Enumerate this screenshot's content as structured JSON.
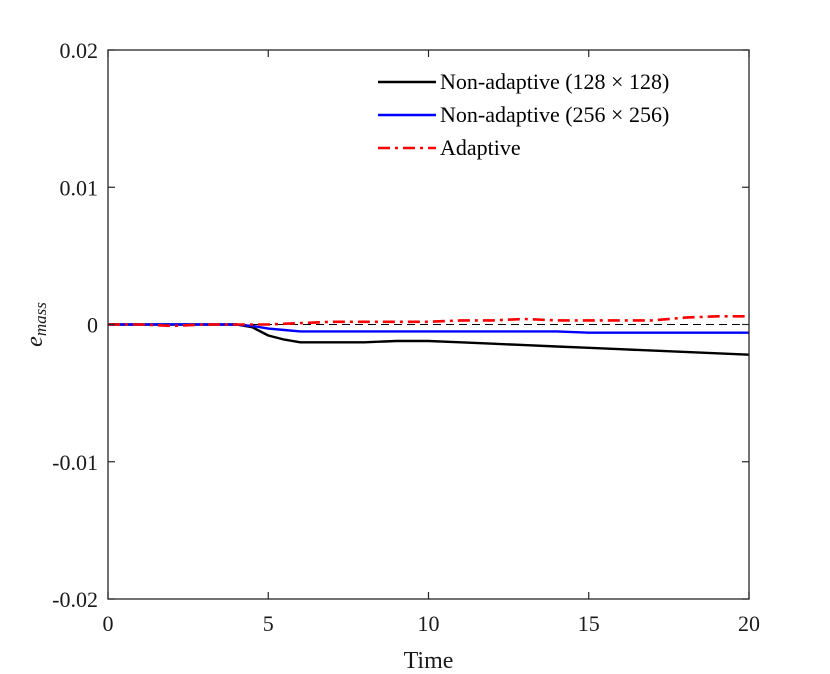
{
  "chart_data": {
    "type": "line",
    "title": "",
    "xlabel": "Time",
    "ylabel": "e",
    "ylabel_subscript": "mass",
    "xlim": [
      0,
      20
    ],
    "ylim": [
      -0.02,
      0.02
    ],
    "xticks": [
      0,
      5,
      10,
      15,
      20
    ],
    "xtick_labels": [
      "0",
      "5",
      "10",
      "15",
      "20"
    ],
    "yticks": [
      -0.02,
      -0.01,
      0,
      0.01,
      0.02
    ],
    "ytick_labels": [
      "-0.02",
      "-0.01",
      "0",
      "0.01",
      "0.02"
    ],
    "grid": false,
    "legend_position": "top-right",
    "reference_line": {
      "y": 0,
      "color": "#000000",
      "style": "dashed"
    },
    "series": [
      {
        "name": "Non-adaptive (128 × 128)",
        "color": "#000000",
        "style": "solid",
        "x": [
          0,
          1,
          2,
          3,
          4,
          4.5,
          5,
          5.5,
          6,
          6.5,
          7,
          8,
          9,
          10,
          11,
          12,
          13,
          14,
          15,
          16,
          17,
          18,
          19,
          20
        ],
        "y": [
          0,
          0,
          0,
          0,
          0,
          -0.0002,
          -0.0008,
          -0.0011,
          -0.0013,
          -0.0013,
          -0.0013,
          -0.0013,
          -0.0012,
          -0.0012,
          -0.0013,
          -0.0014,
          -0.0015,
          -0.0016,
          -0.0017,
          -0.0018,
          -0.0019,
          -0.002,
          -0.0021,
          -0.0022
        ]
      },
      {
        "name": "Non-adaptive (256 × 256)",
        "color": "#0000ff",
        "style": "solid",
        "x": [
          0,
          1,
          2,
          3,
          4,
          4.5,
          5,
          5.5,
          6,
          7,
          8,
          9,
          10,
          11,
          12,
          13,
          14,
          15,
          16,
          17,
          18,
          19,
          20
        ],
        "y": [
          0,
          0,
          0,
          0,
          0,
          -0.0001,
          -0.0003,
          -0.0004,
          -0.0005,
          -0.0005,
          -0.0005,
          -0.0005,
          -0.0005,
          -0.0005,
          -0.0005,
          -0.0005,
          -0.0005,
          -0.0006,
          -0.0006,
          -0.0006,
          -0.0006,
          -0.0006,
          -0.0006
        ]
      },
      {
        "name": "Adaptive",
        "color": "#ff0000",
        "style": "dashdot",
        "x": [
          0,
          1,
          2,
          3,
          4,
          5,
          6,
          7,
          8,
          9,
          10,
          11,
          12,
          13,
          14,
          15,
          16,
          17,
          18,
          19,
          20
        ],
        "y": [
          0,
          0,
          -0.0001,
          0,
          0,
          0,
          0.0001,
          0.0002,
          0.0002,
          0.0002,
          0.0002,
          0.0003,
          0.0003,
          0.0004,
          0.0003,
          0.0003,
          0.0003,
          0.0003,
          0.0005,
          0.0006,
          0.0006
        ]
      }
    ]
  }
}
